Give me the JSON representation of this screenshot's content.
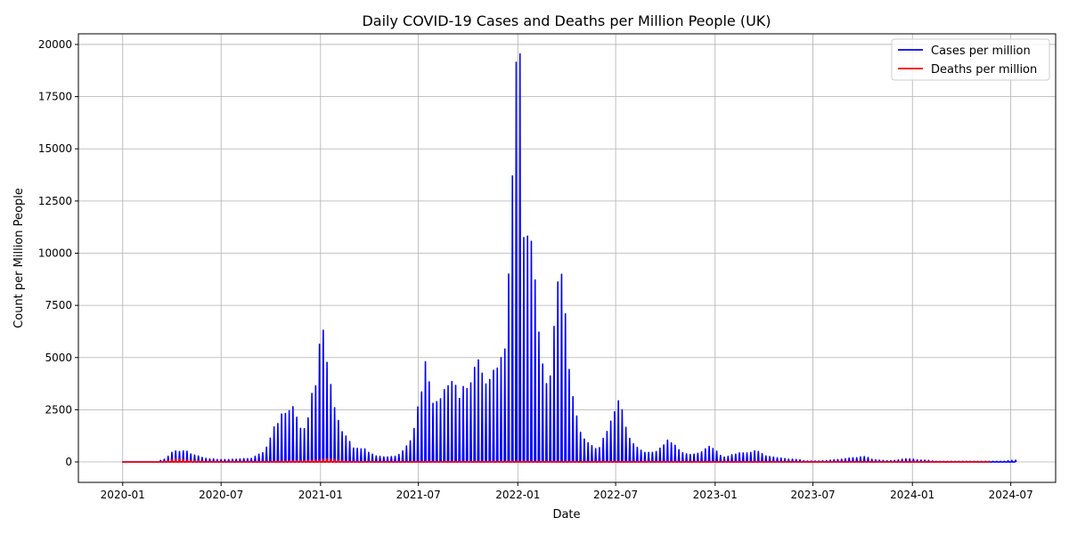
{
  "chart_data": {
    "type": "line",
    "title": "Daily COVID-19 Cases and Deaths per Million People (UK)",
    "xlabel": "Date",
    "ylabel": "Count per Million People",
    "start_date": "2020-01-01",
    "interval_days": 7,
    "xlim": [
      "2019-10-11",
      "2024-09-22"
    ],
    "ylim": [
      -980,
      20510
    ],
    "grid": true,
    "legend_position": "top-right",
    "x_ticks": [
      "2020-01",
      "2020-07",
      "2021-01",
      "2021-07",
      "2022-01",
      "2022-07",
      "2023-01",
      "2023-07",
      "2024-01",
      "2024-07"
    ],
    "y_ticks": [
      0,
      2500,
      5000,
      7500,
      10000,
      12500,
      15000,
      17500,
      20000
    ],
    "series": [
      {
        "name": "Cases per million",
        "color": "#0000ff",
        "values": [
          0,
          0,
          0,
          0,
          0,
          0,
          0,
          0,
          0,
          0,
          70,
          130,
          270,
          455,
          525,
          500,
          525,
          510,
          384,
          327,
          283,
          213,
          170,
          142,
          142,
          114,
          114,
          114,
          114,
          128,
          128,
          142,
          156,
          156,
          170,
          270,
          370,
          440,
          710,
          1140,
          1680,
          1840,
          2295,
          2325,
          2450,
          2650,
          2140,
          1610,
          1600,
          2110,
          3280,
          3650,
          5640,
          6310,
          4770,
          3710,
          2600,
          1985,
          1450,
          1240,
          980,
          665,
          650,
          625,
          625,
          455,
          370,
          285,
          270,
          240,
          240,
          255,
          270,
          355,
          525,
          767,
          1010,
          1605,
          2630,
          3350,
          4800,
          3835,
          2810,
          2885,
          3025,
          3465,
          3650,
          3850,
          3665,
          3040,
          3610,
          3510,
          3790,
          4530,
          4885,
          4250,
          3735,
          3950,
          4390,
          4490,
          5000,
          5410,
          9000,
          13700,
          19150,
          19550,
          10750,
          10820,
          10570,
          8720,
          6220,
          4690,
          3750,
          4120,
          6490,
          8620,
          8990,
          7100,
          4430,
          3125,
          2200,
          1420,
          1094,
          920,
          780,
          640,
          685,
          1130,
          1457,
          1957,
          2400,
          2930,
          2500,
          1657,
          1130,
          870,
          700,
          557,
          457,
          457,
          457,
          500,
          657,
          815,
          1043,
          915,
          800,
          585,
          443,
          386,
          357,
          370,
          415,
          485,
          630,
          743,
          643,
          514,
          314,
          229,
          270,
          343,
          370,
          430,
          430,
          430,
          457,
          530,
          500,
          400,
          285,
          257,
          229,
          200,
          186,
          157,
          130,
          130,
          115,
          100,
          57,
          43,
          43,
          43,
          43,
          57,
          57,
          85,
          100,
          114,
          128,
          156,
          185,
          199,
          199,
          241,
          256,
          213,
          128,
          100,
          85,
          71,
          57,
          57,
          71,
          100,
          128,
          142,
          142,
          128,
          100,
          85,
          85,
          71,
          43,
          28,
          28,
          28,
          28,
          28,
          28,
          28,
          28,
          28,
          28,
          28,
          28,
          28,
          28,
          28,
          28,
          28,
          28,
          28,
          57,
          71,
          85
        ]
      },
      {
        "name": "Deaths per million",
        "color": "#ff0000",
        "values": [
          0,
          0,
          0,
          0,
          0,
          0,
          0,
          0,
          0,
          0,
          5,
          20,
          60,
          110,
          140,
          135,
          120,
          100,
          80,
          60,
          45,
          35,
          25,
          18,
          12,
          8,
          6,
          5,
          4,
          4,
          3,
          3,
          3,
          3,
          4,
          5,
          6,
          8,
          10,
          15,
          20,
          30,
          40,
          45,
          50,
          50,
          55,
          55,
          60,
          65,
          80,
          90,
          100,
          130,
          160,
          150,
          120,
          90,
          60,
          40,
          25,
          15,
          10,
          8,
          6,
          5,
          5,
          4,
          4,
          4,
          4,
          4,
          4,
          4,
          5,
          6,
          8,
          10,
          12,
          14,
          15,
          15,
          15,
          16,
          18,
          18,
          18,
          18,
          17,
          17,
          16,
          16,
          16,
          17,
          18,
          18,
          18,
          18,
          18,
          20,
          22,
          25,
          28,
          30,
          32,
          30,
          28,
          25,
          22,
          20,
          18,
          18,
          20,
          22,
          22,
          20,
          18,
          15,
          12,
          10,
          9,
          8,
          8,
          8,
          10,
          12,
          14,
          16,
          18,
          18,
          16,
          14,
          12,
          10,
          9,
          8,
          8,
          8,
          8,
          9,
          10,
          12,
          13,
          12,
          11,
          10,
          9,
          8,
          8,
          8,
          8,
          9,
          10,
          10,
          9,
          8,
          7,
          6,
          6,
          6,
          6,
          7,
          7,
          7,
          6,
          6,
          5,
          5,
          5,
          4,
          4,
          4,
          4,
          3,
          3,
          3,
          3,
          3,
          3,
          3,
          4,
          4,
          4,
          5,
          5,
          6,
          6,
          6,
          6,
          7,
          6,
          5,
          5,
          4,
          4,
          4,
          4,
          4,
          5,
          5,
          5,
          5,
          5,
          4,
          4,
          4,
          3,
          3,
          2,
          2,
          2,
          2,
          2,
          2,
          2,
          2,
          2,
          2,
          2,
          2,
          2,
          2,
          2,
          2,
          2,
          2,
          2,
          2,
          2,
          3
        ]
      }
    ]
  }
}
